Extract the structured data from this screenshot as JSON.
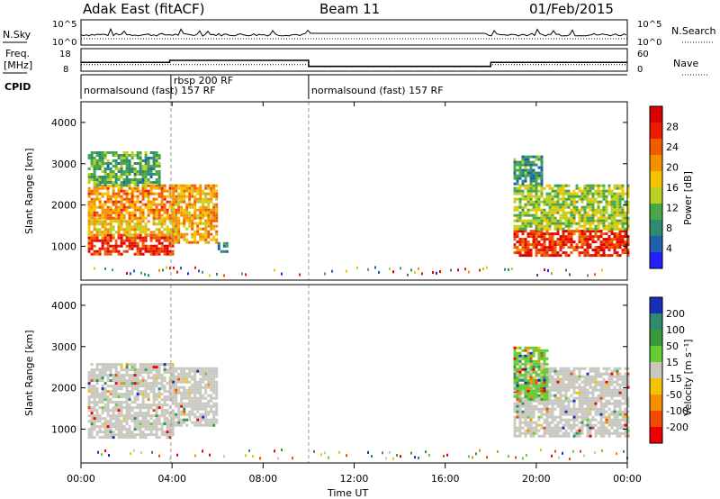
{
  "header": {
    "station": "Adak East (fitACF)",
    "beam": "Beam 11",
    "date": "01/Feb/2015"
  },
  "noise_panel": {
    "left_label": "N.Sky",
    "right_label": "N.Search",
    "left_ticks": [
      "10^5",
      "10^0"
    ],
    "right_ticks": [
      "10^5",
      "10^0"
    ]
  },
  "freq_panel": {
    "left_label_1": "Freq.",
    "left_label_2": "[MHz]",
    "right_label": "Nave",
    "left_ticks": [
      "18",
      "8"
    ],
    "right_ticks": [
      "60",
      "0"
    ],
    "freq_steps": [
      {
        "start": 0,
        "end": 3.9,
        "value": 12
      },
      {
        "start": 3.9,
        "end": 10.0,
        "value": 13
      },
      {
        "start": 10.0,
        "end": 18.0,
        "value": 10
      },
      {
        "start": 18.0,
        "end": 24.0,
        "value": 12
      }
    ],
    "nave_steps": [
      {
        "start": 0,
        "end": 10.0,
        "value": 17
      },
      {
        "start": 10.0,
        "end": 18.0,
        "value": 10
      },
      {
        "start": 18.0,
        "end": 24.0,
        "value": 17
      }
    ]
  },
  "cpid_panel": {
    "label": "CPID",
    "segments": [
      {
        "start": 0,
        "text": "normalsound (fast) 157 RF"
      },
      {
        "start": 3.95,
        "text": "rbsp 200 RF"
      },
      {
        "start": 10.0,
        "text": "normalsound (fast) 157 RF"
      }
    ]
  },
  "power_panel": {
    "ylabel": "Slant Range [km]",
    "yticks": [
      "1000",
      "2000",
      "3000",
      "4000"
    ],
    "colorbar_label": "Power [dB]",
    "colorbar_ticks": [
      "4",
      "8",
      "12",
      "16",
      "20",
      "24",
      "28"
    ],
    "colors": [
      "#2020ff",
      "#205fb0",
      "#2e8b6e",
      "#48a848",
      "#b8d020",
      "#f5c400",
      "#f59000",
      "#f25a00",
      "#ee1a00",
      "#d80000"
    ]
  },
  "velocity_panel": {
    "ylabel": "Slant Range [km]",
    "yticks": [
      "1000",
      "2000",
      "3000",
      "4000"
    ],
    "colorbar_label": "Velocity [m s⁻¹]",
    "colorbar_ticks": [
      "200",
      "100",
      "50",
      "15",
      "-15",
      "-50",
      "-100",
      "-200"
    ],
    "colors": [
      "#1a2fb8",
      "#2e8b6e",
      "#3a9a3a",
      "#66cc33",
      "#c8c8c0",
      "#f5c400",
      "#f59000",
      "#f04a00",
      "#ee0000"
    ]
  },
  "time_axis": {
    "labels": [
      "00:00",
      "04:00",
      "08:00",
      "12:00",
      "16:00",
      "20:00",
      "00:00"
    ],
    "xlabel": "Time UT"
  },
  "chart_data": {
    "type": "heatmap",
    "title": "Adak East (fitACF)  Beam 11  01/Feb/2015",
    "xlabel": "Time UT",
    "ylabel": "Slant Range [km]",
    "xlim": [
      0,
      24
    ],
    "ylim": [
      180,
      4500
    ],
    "x_ticks": [
      "00:00",
      "04:00",
      "08:00",
      "12:00",
      "16:00",
      "20:00",
      "00:00"
    ],
    "y_ticks": [
      1000,
      2000,
      3000,
      4000
    ],
    "panels": [
      {
        "name": "Power [dB]",
        "colorbar_range": [
          0,
          32
        ],
        "regions": [
          {
            "t0": 0.3,
            "t1": 4.0,
            "r0": 800,
            "r1": 1300,
            "level": 28
          },
          {
            "t0": 0.3,
            "t1": 4.0,
            "r0": 1300,
            "r1": 1700,
            "level": 18
          },
          {
            "t0": 0.3,
            "t1": 4.0,
            "r0": 1700,
            "r1": 2500,
            "level": 22
          },
          {
            "t0": 0.3,
            "t1": 3.5,
            "r0": 2500,
            "r1": 3300,
            "level": 10
          },
          {
            "t0": 4.0,
            "t1": 6.0,
            "r0": 1100,
            "r1": 2500,
            "level": 20
          },
          {
            "t0": 6.0,
            "t1": 6.4,
            "r0": 900,
            "r1": 1100,
            "level": 6
          },
          {
            "t0": 19.0,
            "t1": 24.0,
            "r0": 800,
            "r1": 1400,
            "level": 28
          },
          {
            "t0": 19.0,
            "t1": 24.0,
            "r0": 1400,
            "r1": 2500,
            "level": 14
          },
          {
            "t0": 19.0,
            "t1": 20.3,
            "r0": 2500,
            "r1": 3200,
            "level": 8
          }
        ]
      },
      {
        "name": "Velocity [m s-1]",
        "colorbar_range": [
          -250,
          250
        ],
        "regions": [
          {
            "t0": 0.3,
            "t1": 4.0,
            "r0": 800,
            "r1": 2600,
            "level": 0
          },
          {
            "t0": 4.0,
            "t1": 6.0,
            "r0": 1100,
            "r1": 2500,
            "level": 0
          },
          {
            "t0": 19.0,
            "t1": 24.0,
            "r0": 800,
            "r1": 2500,
            "level": 0
          },
          {
            "t0": 19.0,
            "t1": 20.5,
            "r0": 1700,
            "r1": 3000,
            "level": 30
          }
        ]
      }
    ]
  }
}
